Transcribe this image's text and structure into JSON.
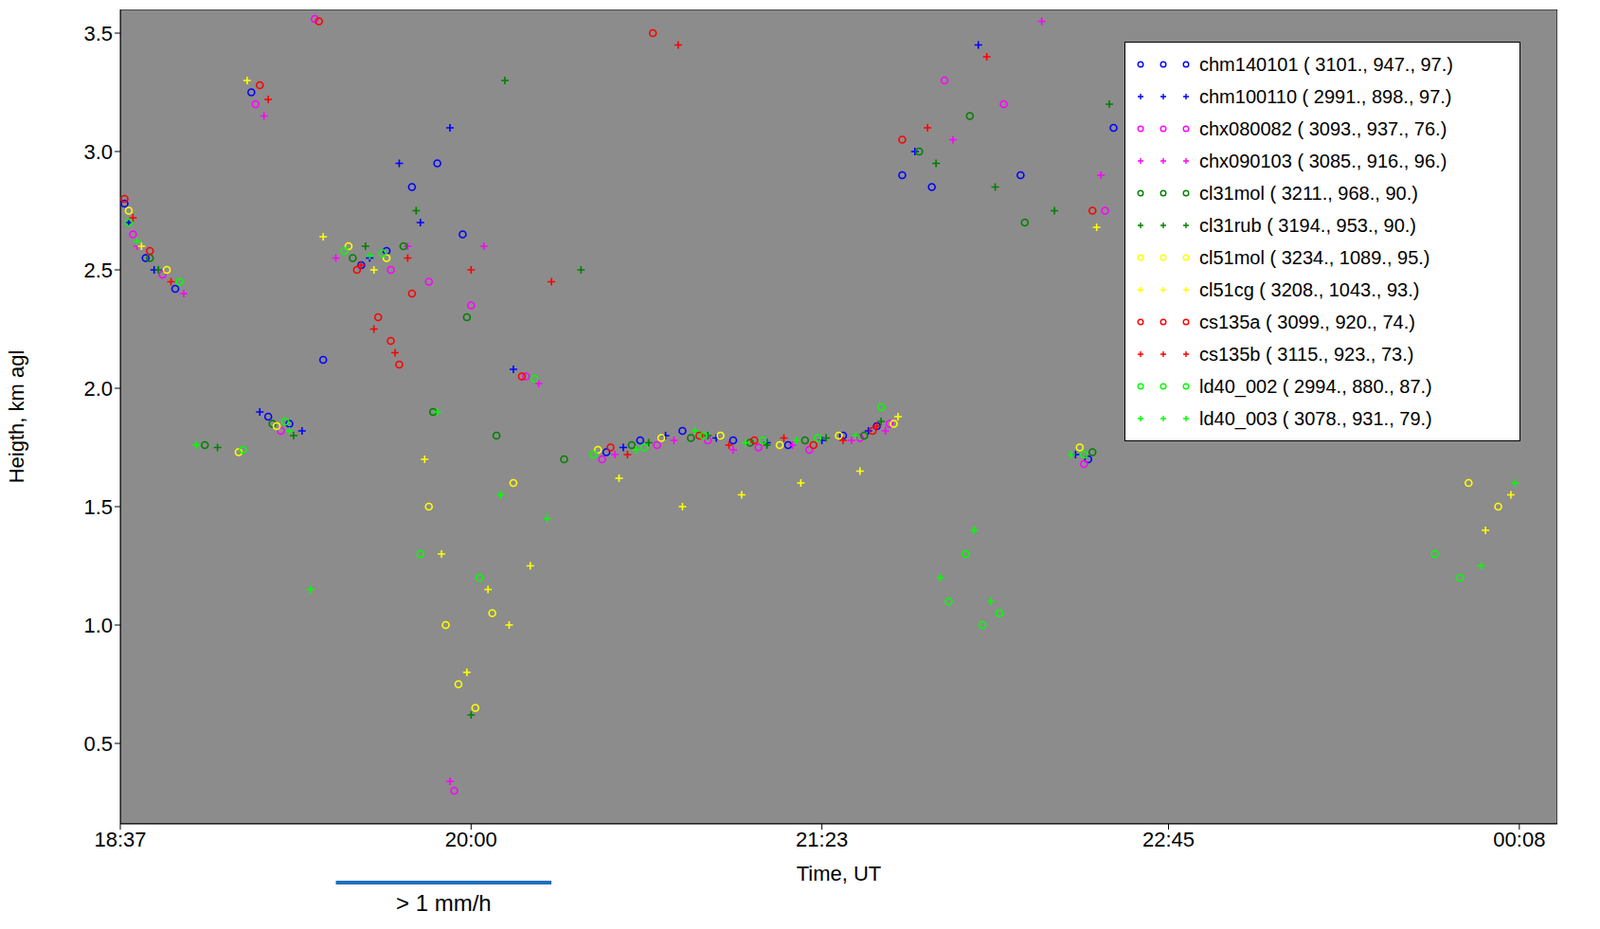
{
  "chart_data": {
    "type": "scatter",
    "x_label": "Time, UT",
    "y_label": "Heigth, km agl",
    "xlim": [
      1117,
      1457
    ],
    "xticks": [
      {
        "value": 1117,
        "label": "18:37"
      },
      {
        "value": 1200,
        "label": "20:00"
      },
      {
        "value": 1283,
        "label": "21:23"
      },
      {
        "value": 1365,
        "label": "22:45"
      },
      {
        "value": 1448,
        "label": "00:08"
      }
    ],
    "ylim": [
      0.16,
      3.6
    ],
    "yticks": [
      0.5,
      {
        "value": 1,
        "label": "1.0"
      },
      1.5,
      {
        "value": 2,
        "label": "2.0"
      },
      2.5,
      {
        "value": 3,
        "label": "3.0"
      },
      3.5
    ],
    "legend": "upper right",
    "annotation": {
      "text": "> 1 mm/h",
      "x": [
        1168,
        1219
      ],
      "color": "#1f6fc0"
    },
    "series": [
      {
        "name": "chm140101 ( 3101., 947., 97.)",
        "color": "#0000ff",
        "marker": "circle",
        "x": [
          1118,
          1123,
          1130,
          1148,
          1152,
          1157,
          1165,
          1174,
          1180,
          1186,
          1192,
          1198,
          1232,
          1240,
          1250,
          1262,
          1275,
          1288,
          1296,
          1302,
          1309,
          1330,
          1346,
          1352
        ],
        "y": [
          2.78,
          2.55,
          2.42,
          3.25,
          1.88,
          1.85,
          2.12,
          2.52,
          2.58,
          2.85,
          2.95,
          2.65,
          1.73,
          1.78,
          1.82,
          1.78,
          1.76,
          1.8,
          1.84,
          2.9,
          2.85,
          2.9,
          1.7,
          3.1
        ]
      },
      {
        "name": "chm100110 ( 2991., 898., 97.)",
        "color": "#0000ff",
        "marker": "plus",
        "x": [
          1119,
          1125,
          1150,
          1160,
          1176,
          1183,
          1188,
          1195,
          1210,
          1236,
          1246,
          1258,
          1270,
          1283,
          1294,
          1305,
          1320,
          1343
        ],
        "y": [
          2.7,
          2.5,
          1.9,
          1.82,
          2.55,
          2.95,
          2.7,
          3.1,
          2.08,
          1.75,
          1.8,
          1.79,
          1.77,
          1.78,
          1.82,
          3.0,
          3.45,
          1.72
        ]
      },
      {
        "name": "chx080082 ( 3093., 937., 76.)",
        "color": "#ff00ff",
        "marker": "circle",
        "x": [
          1120,
          1127,
          1149,
          1155,
          1163,
          1181,
          1190,
          1196,
          1200,
          1213,
          1231,
          1244,
          1256,
          1268,
          1280,
          1292,
          1299,
          1312,
          1326,
          1345,
          1350
        ],
        "y": [
          2.65,
          2.48,
          3.2,
          1.82,
          3.56,
          2.5,
          2.45,
          0.3,
          2.35,
          2.05,
          1.7,
          1.76,
          1.78,
          1.75,
          1.74,
          1.79,
          1.85,
          3.3,
          3.2,
          1.68,
          2.75
        ]
      },
      {
        "name": "chx090103 ( 3085., 916., 96.)",
        "color": "#ff00ff",
        "marker": "plus",
        "x": [
          1121,
          1132,
          1151,
          1168,
          1185,
          1195,
          1203,
          1216,
          1234,
          1248,
          1262,
          1276,
          1290,
          1298,
          1314,
          1335,
          1349
        ],
        "y": [
          2.6,
          2.4,
          3.15,
          2.55,
          2.6,
          0.34,
          2.6,
          2.02,
          1.72,
          1.78,
          1.74,
          1.76,
          1.78,
          1.82,
          3.05,
          3.55,
          2.9
        ]
      },
      {
        "name": "cl31mol ( 3211., 968., 90.)",
        "color": "#008000",
        "marker": "circle",
        "x": [
          1124,
          1137,
          1153,
          1172,
          1184,
          1191,
          1199,
          1206,
          1222,
          1238,
          1252,
          1266,
          1279,
          1293,
          1306,
          1318,
          1331,
          1347
        ],
        "y": [
          2.55,
          1.76,
          1.85,
          2.55,
          2.6,
          1.9,
          2.3,
          1.8,
          1.7,
          1.76,
          1.79,
          1.77,
          1.78,
          1.8,
          3.0,
          3.15,
          2.7,
          1.73
        ]
      },
      {
        "name": "cl31rub ( 3194., 953., 90.)",
        "color": "#008000",
        "marker": "plus",
        "x": [
          1126,
          1140,
          1158,
          1175,
          1187,
          1200,
          1208,
          1226,
          1242,
          1256,
          1270,
          1284,
          1297,
          1310,
          1324,
          1338,
          1351
        ],
        "y": [
          2.5,
          1.75,
          1.8,
          2.6,
          2.75,
          0.62,
          3.3,
          2.5,
          1.77,
          1.8,
          1.76,
          1.79,
          1.86,
          2.95,
          2.85,
          2.75,
          3.2
        ]
      },
      {
        "name": "cl51mol ( 3234., 1089., 95.)",
        "color": "#ffff00",
        "marker": "circle",
        "x": [
          1119,
          1128,
          1145,
          1154,
          1171,
          1180,
          1190,
          1194,
          1197,
          1201,
          1205,
          1210,
          1230,
          1245,
          1259,
          1273,
          1287,
          1300,
          1344,
          1436,
          1443
        ],
        "y": [
          2.75,
          2.5,
          1.73,
          1.84,
          2.6,
          2.55,
          1.5,
          1.0,
          0.75,
          0.65,
          1.05,
          1.6,
          1.74,
          1.79,
          1.8,
          1.76,
          1.8,
          1.85,
          1.75,
          1.6,
          1.5
        ]
      },
      {
        "name": "cl51cg ( 3208., 1043., 93.)",
        "color": "#ffff00",
        "marker": "plus",
        "x": [
          1122,
          1147,
          1165,
          1177,
          1189,
          1193,
          1199,
          1204,
          1209,
          1214,
          1235,
          1250,
          1264,
          1278,
          1292,
          1301,
          1348,
          1440,
          1446
        ],
        "y": [
          2.6,
          3.3,
          2.64,
          2.5,
          1.7,
          1.3,
          0.8,
          1.15,
          1.0,
          1.25,
          1.62,
          1.5,
          1.55,
          1.6,
          1.65,
          1.88,
          2.68,
          1.4,
          1.55
        ]
      },
      {
        "name": "cs135a ( 3099., 920., 74.)",
        "color": "#ff0000",
        "marker": "circle",
        "x": [
          1118,
          1124,
          1150,
          1164,
          1173,
          1178,
          1181,
          1183,
          1186,
          1212,
          1233,
          1243,
          1254,
          1267,
          1281,
          1295,
          1302,
          1347
        ],
        "y": [
          2.8,
          2.58,
          3.28,
          3.55,
          2.5,
          2.3,
          2.2,
          2.1,
          2.4,
          2.05,
          1.75,
          3.5,
          1.8,
          1.78,
          1.76,
          1.82,
          3.05,
          2.75
        ]
      },
      {
        "name": "cs135b ( 3115., 923., 73.)",
        "color": "#ff0000",
        "marker": "plus",
        "x": [
          1120,
          1129,
          1152,
          1174,
          1177,
          1182,
          1185,
          1200,
          1219,
          1237,
          1249,
          1261,
          1274,
          1288,
          1296,
          1308,
          1322
        ],
        "y": [
          2.72,
          2.45,
          3.22,
          2.52,
          2.25,
          2.15,
          2.55,
          2.5,
          2.45,
          1.72,
          3.45,
          1.76,
          1.79,
          1.78,
          1.84,
          3.1,
          3.4
        ]
      },
      {
        "name": "ld40_002 ( 2994., 880., 87.)",
        "color": "#00ff00",
        "marker": "circle",
        "x": [
          1119,
          1131,
          1146,
          1156,
          1170,
          1179,
          1188,
          1202,
          1215,
          1229,
          1241,
          1255,
          1269,
          1282,
          1297,
          1313,
          1317,
          1321,
          1325,
          1345,
          1428,
          1434
        ],
        "y": [
          2.7,
          2.45,
          1.74,
          1.86,
          2.58,
          2.57,
          1.3,
          1.2,
          2.04,
          1.72,
          1.75,
          1.8,
          1.78,
          1.79,
          1.92,
          1.1,
          1.3,
          1.0,
          1.05,
          1.72,
          1.3,
          1.2
        ]
      },
      {
        "name": "ld40_003 ( 3078., 931., 79.)",
        "color": "#00ff00",
        "marker": "plus",
        "x": [
          1121,
          1135,
          1157,
          1162,
          1176,
          1192,
          1207,
          1218,
          1239,
          1253,
          1265,
          1277,
          1291,
          1311,
          1319,
          1323,
          1342,
          1439,
          1447
        ],
        "y": [
          2.62,
          1.76,
          1.82,
          1.15,
          2.56,
          1.9,
          1.55,
          1.45,
          1.74,
          1.82,
          1.77,
          1.78,
          1.8,
          1.2,
          1.4,
          1.1,
          1.72,
          1.25,
          1.6
        ]
      }
    ]
  }
}
